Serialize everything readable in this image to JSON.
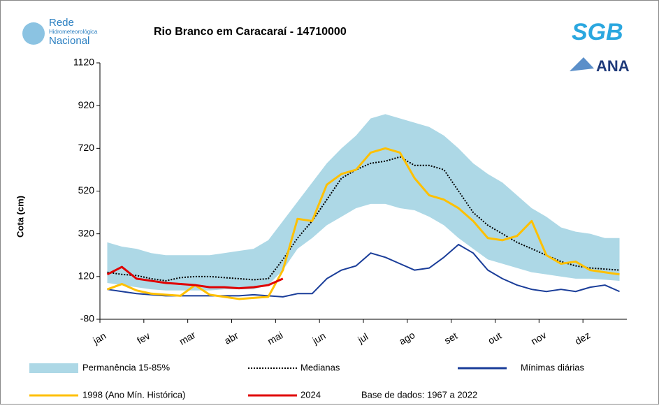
{
  "chart_data": {
    "type": "line",
    "title": "Rio Branco em Caracaraí - 14710000",
    "ylabel": "Cota (cm)",
    "note": "Base de dados: 1967 a 2022",
    "logos": {
      "rede": "Rede",
      "hidro": "Hidrometeorológica",
      "nacional": "Nacional",
      "sgb": "SGB",
      "ana": "ANA"
    },
    "categories": [
      "jan",
      null,
      null,
      "fev",
      null,
      null,
      "mar",
      null,
      null,
      "abr",
      null,
      null,
      "mai",
      null,
      null,
      "jun",
      null,
      null,
      "jul",
      null,
      null,
      "ago",
      null,
      null,
      "set",
      null,
      null,
      "out",
      null,
      null,
      "nov",
      null,
      null,
      "dez",
      null,
      null
    ],
    "ylim": [
      -80,
      1120
    ],
    "yticks": [
      -80,
      120,
      320,
      520,
      720,
      920,
      1120
    ],
    "series": [
      {
        "name": "Permanência 15-85%",
        "color": "#add8e6",
        "band": true,
        "low": [
          90,
          80,
          70,
          60,
          55,
          55,
          55,
          55,
          60,
          60,
          60,
          80,
          150,
          250,
          300,
          360,
          400,
          440,
          460,
          460,
          440,
          430,
          400,
          360,
          300,
          250,
          200,
          180,
          160,
          140,
          130,
          120,
          110,
          110,
          105,
          100
        ],
        "high": [
          280,
          260,
          250,
          230,
          220,
          220,
          220,
          220,
          230,
          240,
          250,
          290,
          380,
          470,
          560,
          650,
          720,
          780,
          860,
          880,
          860,
          840,
          820,
          780,
          720,
          650,
          600,
          560,
          500,
          440,
          400,
          350,
          330,
          320,
          300,
          300
        ]
      },
      {
        "name": "Medianas",
        "color": "#000000",
        "dash": true,
        "values": [
          140,
          130,
          125,
          110,
          100,
          115,
          120,
          120,
          115,
          110,
          105,
          110,
          200,
          300,
          380,
          480,
          580,
          620,
          650,
          660,
          680,
          640,
          640,
          620,
          520,
          420,
          360,
          320,
          280,
          250,
          220,
          190,
          170,
          160,
          155,
          150
        ]
      },
      {
        "name": "Mínimas diárias",
        "color": "#1a3d99",
        "values": [
          60,
          50,
          40,
          35,
          30,
          30,
          30,
          30,
          30,
          30,
          35,
          30,
          25,
          40,
          40,
          110,
          150,
          170,
          230,
          210,
          180,
          150,
          160,
          210,
          270,
          230,
          150,
          110,
          80,
          60,
          50,
          60,
          50,
          70,
          80,
          50
        ]
      },
      {
        "name": "1998 (Ano Mín. Histórica)",
        "color": "#ffc000",
        "values": [
          60,
          85,
          55,
          40,
          35,
          30,
          80,
          35,
          25,
          15,
          20,
          25,
          150,
          390,
          380,
          550,
          600,
          620,
          700,
          720,
          700,
          580,
          500,
          480,
          440,
          380,
          300,
          290,
          310,
          380,
          220,
          180,
          190,
          150,
          140,
          130
        ]
      },
      {
        "name": "2024",
        "color": "#e00000",
        "values": [
          130,
          165,
          110,
          100,
          90,
          85,
          80,
          70,
          70,
          65,
          70,
          80,
          110,
          null,
          null,
          null,
          null,
          null,
          null,
          null,
          null,
          null,
          null,
          null,
          null,
          null,
          null,
          null,
          null,
          null,
          null,
          null,
          null,
          null,
          null,
          null
        ]
      }
    ]
  }
}
